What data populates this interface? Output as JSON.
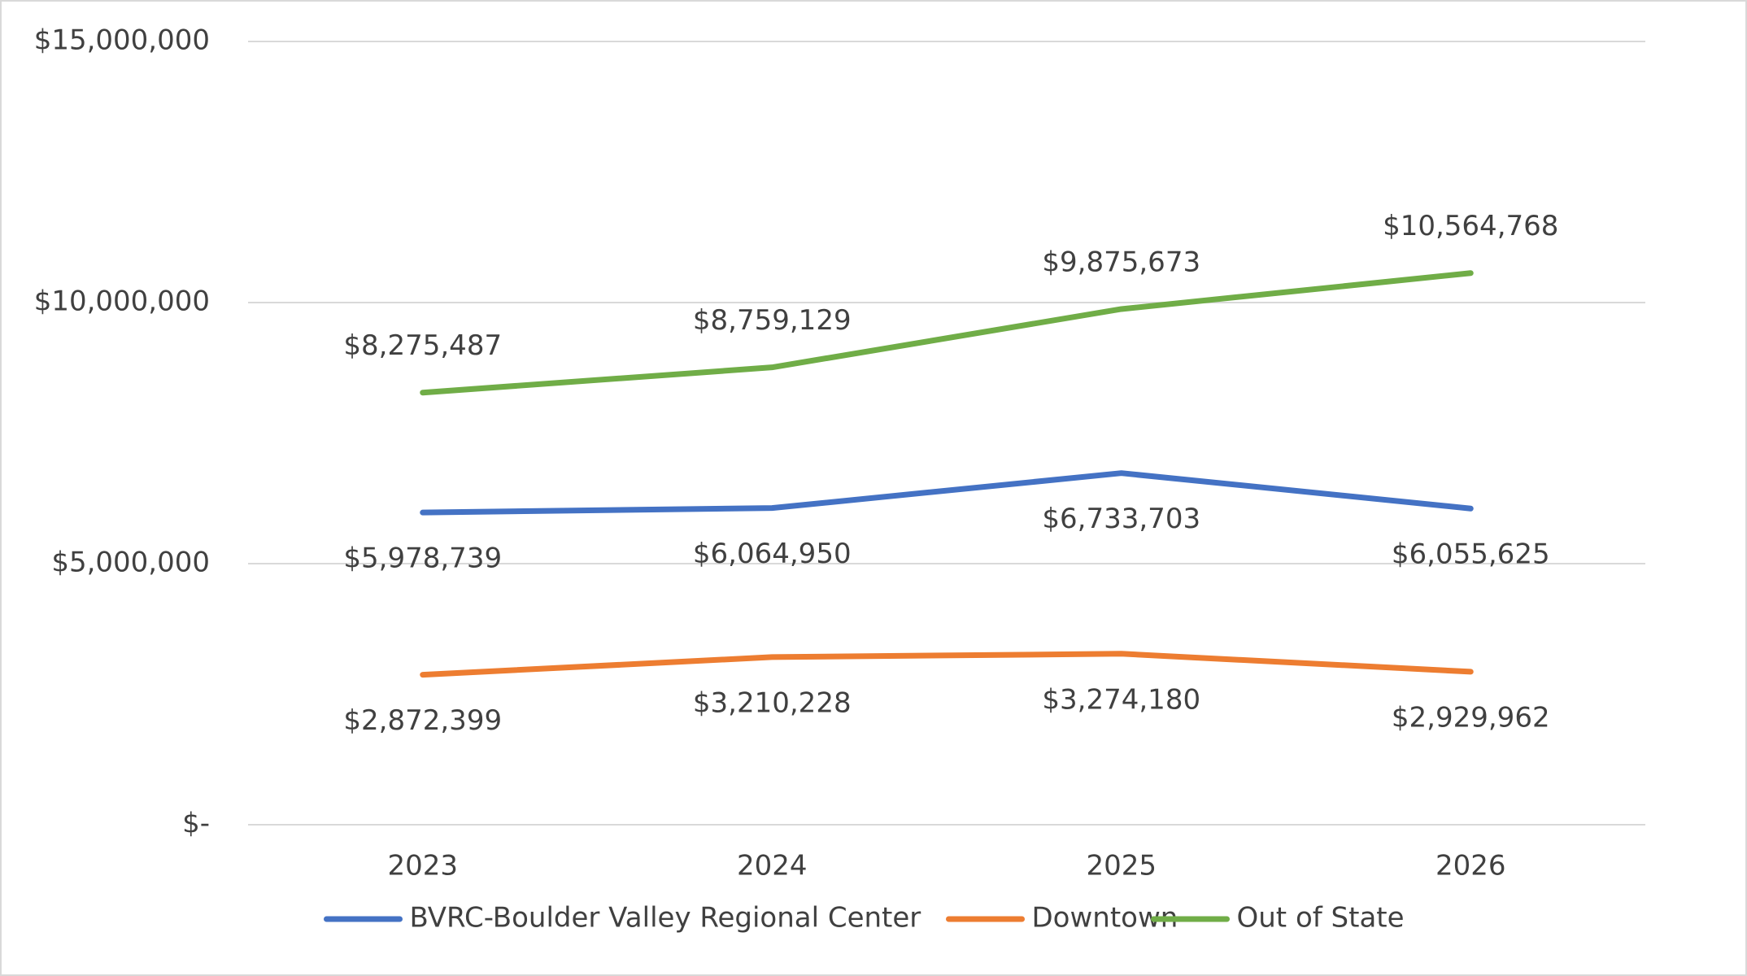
{
  "chart_data": {
    "type": "line",
    "categories": [
      "2023",
      "2024",
      "2025",
      "2026"
    ],
    "series": [
      {
        "name": "BVRC-Boulder Valley Regional Center",
        "color": "#4472c4",
        "values": [
          5978739,
          6064950,
          6733703,
          6055625
        ],
        "value_labels": [
          "$5,978,739",
          "$6,064,950",
          "$6,733,703",
          "$6,055,625"
        ]
      },
      {
        "name": "Downtown",
        "color": "#ed7d31",
        "values": [
          2872399,
          3210228,
          3274180,
          2929962
        ],
        "value_labels": [
          "$2,872,399",
          "$3,210,228",
          "$3,274,180",
          "$2,929,962"
        ]
      },
      {
        "name": "Out of State",
        "color": "#70ad47",
        "values": [
          8275487,
          8759129,
          9875673,
          10564768
        ],
        "value_labels": [
          "$8,275,487",
          "$8,759,129",
          "$9,875,673",
          "$10,564,768"
        ]
      }
    ],
    "ylim": [
      0,
      15000000
    ],
    "yticks": [
      {
        "value": 0,
        "label": "$-"
      },
      {
        "value": 5000000,
        "label": "$5,000,000"
      },
      {
        "value": 10000000,
        "label": "$10,000,000"
      },
      {
        "value": 15000000,
        "label": "$15,000,000"
      }
    ],
    "grid": true,
    "legend": "bottom"
  }
}
